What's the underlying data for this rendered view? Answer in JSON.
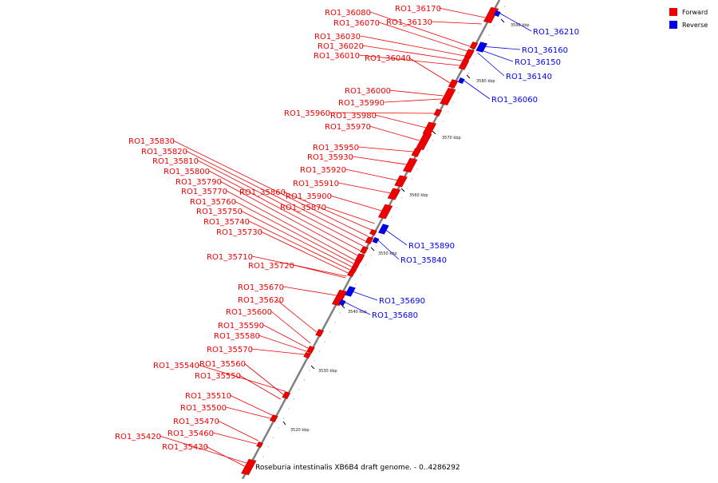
{
  "legend": {
    "forward": "Forward",
    "reverse": "Reverse"
  },
  "colors": {
    "forward": "#ee0000",
    "reverse": "#0000ee",
    "axis": "#808080",
    "tick": "#000000"
  },
  "caption": "Roseburia intestinalis XB6B4 draft genome. - 0..4286292",
  "ticks": [
    "3520 kbp",
    "3530 kbp",
    "3540 kbp",
    "3550 kbp",
    "3560 kbp",
    "3570 kbp",
    "3580 kbp",
    "3590 kbp"
  ],
  "forward_labels": [
    "RO1_36170",
    "RO1_36080",
    "RO1_36130",
    "RO1_36070",
    "RO1_36030",
    "RO1_36020",
    "RO1_36010",
    "RO1_36040",
    "RO1_36000",
    "RO1_35990",
    "RO1_35960",
    "RO1_35980",
    "RO1_35970",
    "RO1_35950",
    "RO1_35930",
    "RO1_35920",
    "RO1_35910",
    "RO1_35860",
    "RO1_35900",
    "RO1_35870",
    "RO1_35830",
    "RO1_35820",
    "RO1_35810",
    "RO1_35800",
    "RO1_35790",
    "RO1_35770",
    "RO1_35760",
    "RO1_35750",
    "RO1_35740",
    "RO1_35730",
    "RO1_35710",
    "RO1_35720",
    "RO1_35670",
    "RO1_35620",
    "RO1_35600",
    "RO1_35590",
    "RO1_35580",
    "RO1_35570",
    "RO1_35540",
    "RO1_35560",
    "RO1_35550",
    "RO1_35510",
    "RO1_35500",
    "RO1_35470",
    "RO1_35460",
    "RO1_35420",
    "RO1_35430"
  ],
  "reverse_labels": [
    "RO1_36210",
    "RO1_36160",
    "RO1_36150",
    "RO1_36140",
    "RO1_36060",
    "RO1_35890",
    "RO1_35840",
    "RO1_35690",
    "RO1_35680"
  ]
}
